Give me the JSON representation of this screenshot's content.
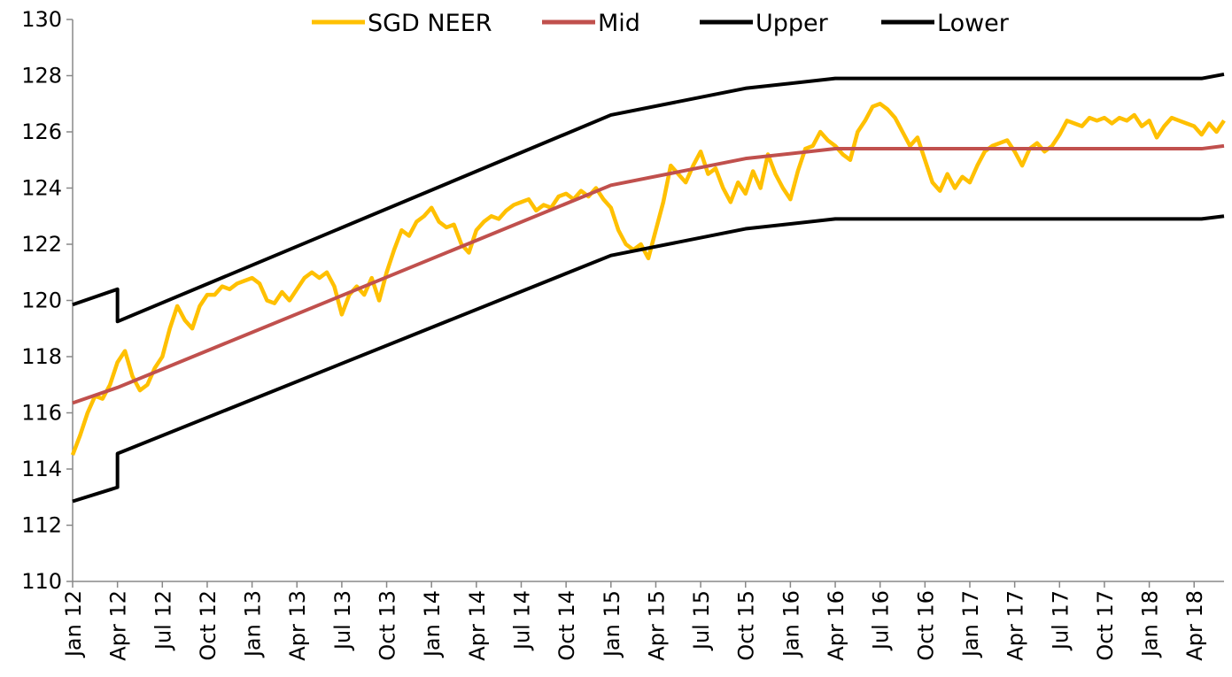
{
  "chart_data": {
    "type": "line",
    "xlim": [
      0,
      77
    ],
    "xticks": [
      {
        "value": 0,
        "label": "Jan 12"
      },
      {
        "value": 3,
        "label": "Apr 12"
      },
      {
        "value": 6,
        "label": "Jul 12"
      },
      {
        "value": 9,
        "label": "Oct 12"
      },
      {
        "value": 12,
        "label": "Jan 13"
      },
      {
        "value": 15,
        "label": "Apr 13"
      },
      {
        "value": 18,
        "label": "Jul 13"
      },
      {
        "value": 21,
        "label": "Oct 13"
      },
      {
        "value": 24,
        "label": "Jan 14"
      },
      {
        "value": 27,
        "label": "Apr 14"
      },
      {
        "value": 30,
        "label": "Jul 14"
      },
      {
        "value": 33,
        "label": "Oct 14"
      },
      {
        "value": 36,
        "label": "Jan 15"
      },
      {
        "value": 39,
        "label": "Apr 15"
      },
      {
        "value": 42,
        "label": "Jul 15"
      },
      {
        "value": 45,
        "label": "Oct 15"
      },
      {
        "value": 48,
        "label": "Jan 16"
      },
      {
        "value": 51,
        "label": "Apr 16"
      },
      {
        "value": 54,
        "label": "Jul 16"
      },
      {
        "value": 57,
        "label": "Oct 16"
      },
      {
        "value": 60,
        "label": "Jan 17"
      },
      {
        "value": 63,
        "label": "Apr 17"
      },
      {
        "value": 66,
        "label": "Jul 17"
      },
      {
        "value": 69,
        "label": "Oct 17"
      },
      {
        "value": 72,
        "label": "Jan 18"
      },
      {
        "value": 75,
        "label": "Apr 18"
      }
    ],
    "ylim": [
      110,
      130
    ],
    "yticks": [
      110,
      112,
      114,
      116,
      118,
      120,
      122,
      124,
      126,
      128,
      130
    ],
    "grid": false,
    "legend": "top",
    "series": [
      {
        "name": "SGD NEER",
        "color": "#ffc000",
        "x": [
          0,
          0.5,
          1,
          1.5,
          2,
          2.5,
          3,
          3.5,
          4,
          4.5,
          5,
          5.5,
          6,
          6.5,
          7,
          7.5,
          8,
          8.5,
          9,
          9.5,
          10,
          10.5,
          11,
          11.5,
          12,
          12.5,
          13,
          13.5,
          14,
          14.5,
          15,
          15.5,
          16,
          16.5,
          17,
          17.5,
          18,
          18.5,
          19,
          19.5,
          20,
          20.5,
          21,
          21.5,
          22,
          22.5,
          23,
          23.5,
          24,
          24.5,
          25,
          25.5,
          26,
          26.5,
          27,
          27.5,
          28,
          28.5,
          29,
          29.5,
          30,
          30.5,
          31,
          31.5,
          32,
          32.5,
          33,
          33.5,
          34,
          34.5,
          35,
          35.5,
          36,
          36.5,
          37,
          37.5,
          38,
          38.5,
          39,
          39.5,
          40,
          40.5,
          41,
          41.5,
          42,
          42.5,
          43,
          43.5,
          44,
          44.5,
          45,
          45.5,
          46,
          46.5,
          47,
          47.5,
          48,
          48.5,
          49,
          49.5,
          50,
          50.5,
          51,
          51.5,
          52,
          52.5,
          53,
          53.5,
          54,
          54.5,
          55,
          55.5,
          56,
          56.5,
          57,
          57.5,
          58,
          58.5,
          59,
          59.5,
          60,
          60.5,
          61,
          61.5,
          62,
          62.5,
          63,
          63.5,
          64,
          64.5,
          65,
          65.5,
          66,
          66.5,
          67,
          67.5,
          68,
          68.5,
          69,
          69.5,
          70,
          70.5,
          71,
          71.5,
          72,
          72.5,
          73,
          73.5,
          74,
          74.5,
          75,
          75.5,
          76,
          76.5,
          77
        ],
        "values": [
          114.5,
          115.2,
          116.0,
          116.6,
          116.5,
          117.0,
          117.8,
          118.2,
          117.3,
          116.8,
          117.0,
          117.6,
          118.0,
          119.0,
          119.8,
          119.3,
          119.0,
          119.8,
          120.2,
          120.2,
          120.5,
          120.4,
          120.6,
          120.7,
          120.8,
          120.6,
          120.0,
          119.9,
          120.3,
          120.0,
          120.4,
          120.8,
          121.0,
          120.8,
          121.0,
          120.5,
          119.5,
          120.2,
          120.5,
          120.2,
          120.8,
          120.0,
          121.0,
          121.8,
          122.5,
          122.3,
          122.8,
          123.0,
          123.3,
          122.8,
          122.6,
          122.7,
          122.0,
          121.7,
          122.5,
          122.8,
          123.0,
          122.9,
          123.2,
          123.4,
          123.5,
          123.6,
          123.2,
          123.4,
          123.3,
          123.7,
          123.8,
          123.6,
          123.9,
          123.7,
          124.0,
          123.6,
          123.3,
          122.5,
          122.0,
          121.8,
          122.0,
          121.5,
          122.5,
          123.5,
          124.8,
          124.5,
          124.2,
          124.8,
          125.3,
          124.5,
          124.7,
          124.0,
          123.5,
          124.2,
          123.8,
          124.6,
          124.0,
          125.2,
          124.5,
          124.0,
          123.6,
          124.6,
          125.4,
          125.5,
          126.0,
          125.7,
          125.5,
          125.2,
          125.0,
          126.0,
          126.4,
          126.9,
          127.0,
          126.8,
          126.5,
          126.0,
          125.5,
          125.8,
          125.0,
          124.2,
          123.9,
          124.5,
          124.0,
          124.4,
          124.2,
          124.8,
          125.3,
          125.5,
          125.6,
          125.7,
          125.3,
          124.8,
          125.4,
          125.6,
          125.3,
          125.5,
          125.9,
          126.4,
          126.3,
          126.2,
          126.5,
          126.4,
          126.5,
          126.3,
          126.5,
          126.4,
          126.6,
          126.2,
          126.4,
          125.8,
          126.2,
          126.5,
          126.4,
          126.3,
          126.2,
          125.9,
          126.3,
          126.0,
          126.4
        ]
      },
      {
        "name": "Mid",
        "color": "#c0504d",
        "x": [
          0,
          3,
          36,
          45,
          51,
          75.5,
          77
        ],
        "values": [
          116.35,
          116.9,
          124.1,
          125.05,
          125.4,
          125.4,
          125.5
        ]
      },
      {
        "name": "Upper",
        "color": "#000000",
        "x": [
          0,
          3,
          3,
          36,
          45,
          51,
          75.5,
          77
        ],
        "values": [
          119.85,
          120.4,
          119.25,
          126.6,
          127.55,
          127.9,
          127.9,
          128.05
        ]
      },
      {
        "name": "Lower",
        "color": "#000000",
        "x": [
          0,
          3,
          3,
          36,
          45,
          51,
          75.5,
          77
        ],
        "values": [
          112.85,
          113.35,
          114.55,
          121.6,
          122.55,
          122.9,
          122.9,
          123.0
        ]
      }
    ]
  }
}
